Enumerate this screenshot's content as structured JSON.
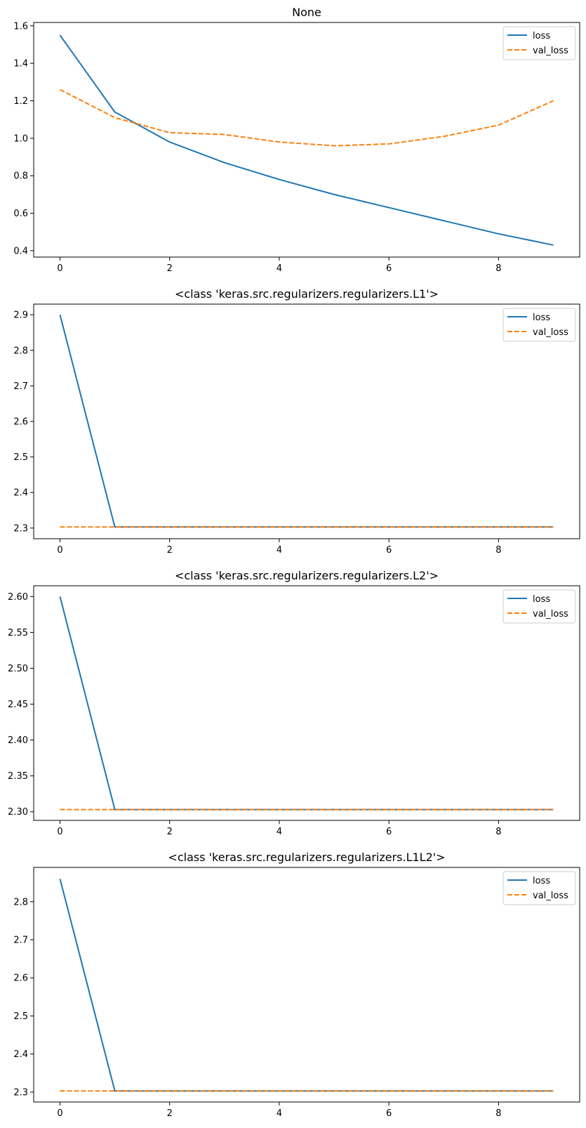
{
  "chart_data": [
    {
      "type": "line",
      "title": "None",
      "x": [
        0,
        1,
        2,
        3,
        4,
        5,
        6,
        7,
        8,
        9
      ],
      "xlim": [
        -0.48,
        9.48
      ],
      "xticks": [
        0,
        2,
        4,
        6,
        8
      ],
      "ylim": [
        0.366,
        1.618
      ],
      "yticks": [
        0.4,
        0.6,
        0.8,
        1.0,
        1.2,
        1.4,
        1.6
      ],
      "ytick_decimals": 1,
      "legend_position": "top-right",
      "series": [
        {
          "name": "loss",
          "color": "#1f77b4",
          "style": "solid",
          "values": [
            1.55,
            1.14,
            0.98,
            0.87,
            0.78,
            0.7,
            0.63,
            0.56,
            0.49,
            0.43
          ]
        },
        {
          "name": "val_loss",
          "color": "#ff7f0e",
          "style": "dashed",
          "values": [
            1.26,
            1.11,
            1.03,
            1.02,
            0.98,
            0.96,
            0.97,
            1.01,
            1.07,
            1.2
          ]
        }
      ]
    },
    {
      "type": "line",
      "title": "<class 'keras.src.regularizers.regularizers.L1'>",
      "x": [
        0,
        1,
        2,
        3,
        4,
        5,
        6,
        7,
        8,
        9
      ],
      "xlim": [
        -0.48,
        9.48
      ],
      "xticks": [
        0,
        2,
        4,
        6,
        8
      ],
      "ylim": [
        2.27,
        2.93
      ],
      "yticks": [
        2.3,
        2.4,
        2.5,
        2.6,
        2.7,
        2.8,
        2.9
      ],
      "ytick_decimals": 1,
      "legend_position": "top-right",
      "series": [
        {
          "name": "loss",
          "color": "#1f77b4",
          "style": "solid",
          "values": [
            2.9,
            2.303,
            2.303,
            2.303,
            2.303,
            2.303,
            2.303,
            2.303,
            2.303,
            2.303
          ]
        },
        {
          "name": "val_loss",
          "color": "#ff7f0e",
          "style": "dashed",
          "values": [
            2.303,
            2.303,
            2.303,
            2.303,
            2.303,
            2.303,
            2.303,
            2.303,
            2.303,
            2.303
          ]
        }
      ]
    },
    {
      "type": "line",
      "title": "<class 'keras.src.regularizers.regularizers.L2'>",
      "x": [
        0,
        1,
        2,
        3,
        4,
        5,
        6,
        7,
        8,
        9
      ],
      "xlim": [
        -0.48,
        9.48
      ],
      "xticks": [
        0,
        2,
        4,
        6,
        8
      ],
      "ylim": [
        2.288,
        2.615
      ],
      "yticks": [
        2.3,
        2.35,
        2.4,
        2.45,
        2.5,
        2.55,
        2.6
      ],
      "ytick_decimals": 2,
      "legend_position": "top-right",
      "series": [
        {
          "name": "loss",
          "color": "#1f77b4",
          "style": "solid",
          "values": [
            2.6,
            2.303,
            2.303,
            2.303,
            2.303,
            2.303,
            2.303,
            2.303,
            2.303,
            2.303
          ]
        },
        {
          "name": "val_loss",
          "color": "#ff7f0e",
          "style": "dashed",
          "values": [
            2.303,
            2.303,
            2.303,
            2.303,
            2.303,
            2.303,
            2.303,
            2.303,
            2.303,
            2.303
          ]
        }
      ]
    },
    {
      "type": "line",
      "title": "<class 'keras.src.regularizers.regularizers.L1L2'>",
      "x": [
        0,
        1,
        2,
        3,
        4,
        5,
        6,
        7,
        8,
        9
      ],
      "xlim": [
        -0.48,
        9.48
      ],
      "xticks": [
        0,
        2,
        4,
        6,
        8
      ],
      "ylim": [
        2.274,
        2.89
      ],
      "yticks": [
        2.3,
        2.4,
        2.5,
        2.6,
        2.7,
        2.8
      ],
      "ytick_decimals": 1,
      "legend_position": "top-right",
      "series": [
        {
          "name": "loss",
          "color": "#1f77b4",
          "style": "solid",
          "values": [
            2.86,
            2.303,
            2.303,
            2.303,
            2.303,
            2.303,
            2.303,
            2.303,
            2.303,
            2.303
          ]
        },
        {
          "name": "val_loss",
          "color": "#ff7f0e",
          "style": "dashed",
          "values": [
            2.303,
            2.303,
            2.303,
            2.303,
            2.303,
            2.303,
            2.303,
            2.303,
            2.303,
            2.303
          ]
        }
      ]
    }
  ]
}
